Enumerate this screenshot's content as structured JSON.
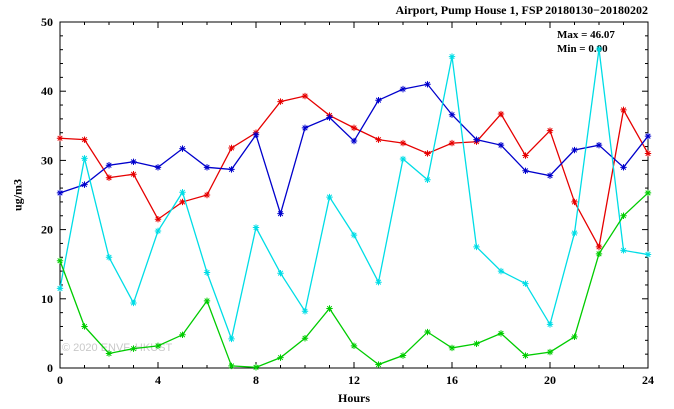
{
  "annotations": {
    "max_label": "Max = 46.07",
    "min_label": "Min = 0.00",
    "watermark": "© 2020 ENVF, HKUST"
  },
  "chart_data": {
    "type": "line",
    "title": "Airport, Pump House 1, FSP 20180130−20180202",
    "xlabel": "Hours",
    "ylabel": "ug/m3",
    "xlim": [
      0,
      24
    ],
    "ylim": [
      0,
      50
    ],
    "x_major_ticks": [
      0,
      4,
      8,
      12,
      16,
      20,
      24
    ],
    "y_major_ticks": [
      0,
      10,
      20,
      30,
      40,
      50
    ],
    "grid": false,
    "legend": "none",
    "marker": "asterisk",
    "x": [
      0,
      1,
      2,
      3,
      4,
      5,
      6,
      7,
      8,
      9,
      10,
      11,
      12,
      13,
      14,
      15,
      16,
      17,
      18,
      19,
      20,
      21,
      22,
      23,
      24
    ],
    "series": [
      {
        "name": "red",
        "color": "#e60000",
        "values": [
          33.2,
          33.0,
          27.5,
          28.0,
          21.5,
          24.0,
          25.0,
          31.8,
          34.0,
          38.5,
          39.3,
          36.5,
          34.7,
          33.0,
          32.5,
          31.0,
          32.5,
          32.7,
          36.7,
          30.7,
          34.3,
          24.0,
          17.5,
          37.3,
          31.0
        ]
      },
      {
        "name": "blue",
        "color": "#0000cc",
        "values": [
          25.3,
          26.5,
          29.3,
          29.8,
          29.0,
          31.7,
          29.0,
          28.7,
          33.7,
          22.3,
          34.7,
          36.2,
          32.8,
          38.7,
          40.3,
          41.0,
          36.6,
          33.0,
          32.2,
          28.5,
          27.8,
          31.5,
          32.2,
          29.0,
          33.5
        ]
      },
      {
        "name": "cyan",
        "color": "#00dde6",
        "values": [
          11.5,
          30.3,
          16.0,
          9.4,
          19.8,
          25.4,
          13.8,
          4.2,
          20.3,
          13.7,
          8.2,
          24.7,
          19.2,
          12.4,
          30.2,
          27.2,
          45.0,
          17.5,
          14.0,
          12.2,
          6.3,
          19.5,
          46.1,
          17.0,
          16.4
        ]
      },
      {
        "name": "green",
        "color": "#00cc00",
        "values": [
          15.5,
          6.0,
          2.1,
          2.8,
          3.2,
          4.8,
          9.7,
          0.3,
          0.1,
          1.5,
          4.3,
          8.6,
          3.2,
          0.5,
          1.8,
          5.2,
          2.9,
          3.5,
          5.0,
          1.8,
          2.3,
          4.5,
          16.5,
          22.0,
          25.3
        ]
      }
    ]
  }
}
